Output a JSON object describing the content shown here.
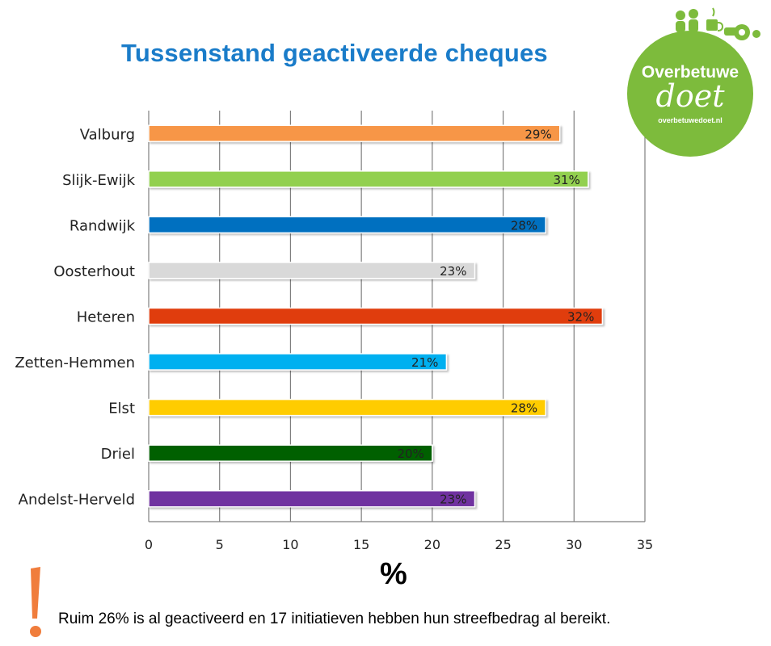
{
  "logo": {
    "line1": "Overbetuwe",
    "line2": "doet",
    "url": "overbetuwedoet.nl",
    "color": "#7dbb3c"
  },
  "footnote": "Ruim 26% is al geactiveerd en 17 initiatieven hebben hun streefbedrag al bereikt.",
  "chart_data": {
    "type": "bar",
    "orientation": "horizontal",
    "title": "Tussenstand geactiveerde cheques",
    "xlabel": "%",
    "ylabel": "",
    "xlim": [
      0,
      35
    ],
    "xticks": [
      0,
      5,
      10,
      15,
      20,
      25,
      30,
      35
    ],
    "grid": true,
    "legend": "none",
    "categories": [
      "Valburg",
      "Slijk-Ewijk",
      "Randwijk",
      "Oosterhout",
      "Heteren",
      "Zetten-Hemmen",
      "Elst",
      "Driel",
      "Andelst-Herveld"
    ],
    "values": [
      29,
      31,
      28,
      23,
      32,
      21,
      28,
      20,
      23
    ],
    "data_labels": [
      "29%",
      "31%",
      "28%",
      "23%",
      "32%",
      "21%",
      "28%",
      "20%",
      "23%"
    ],
    "colors": [
      "#f79646",
      "#92d050",
      "#0070c0",
      "#d9d9d9",
      "#e03c10",
      "#00b0f0",
      "#ffcc00",
      "#006100",
      "#7030a0"
    ]
  }
}
